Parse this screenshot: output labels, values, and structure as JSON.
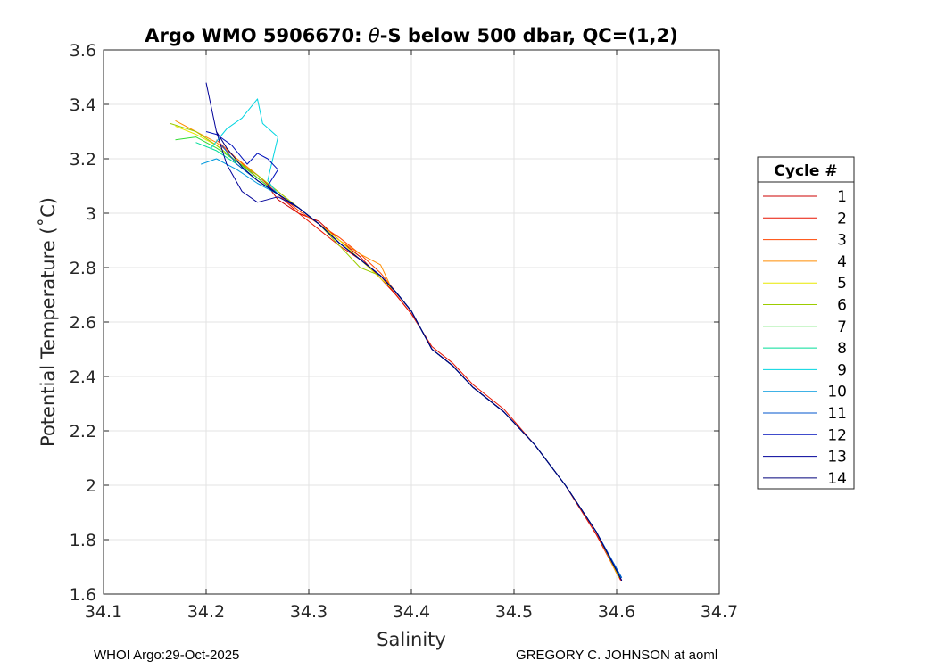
{
  "chart_data": {
    "type": "line",
    "title_prefix": "Argo WMO 5906670: ",
    "title_theta": "θ",
    "title_suffix": "-S below 500 dbar,  QC=(1,2)",
    "xlabel": "Salinity",
    "ylabel": "Potential Temperature (˚C)",
    "xlim": [
      34.1,
      34.7
    ],
    "ylim": [
      1.6,
      3.6
    ],
    "xticks": [
      34.1,
      34.2,
      34.3,
      34.4,
      34.5,
      34.6,
      34.7
    ],
    "xtick_labels": [
      "34.1",
      "34.2",
      "34.3",
      "34.4",
      "34.5",
      "34.6",
      "34.7"
    ],
    "yticks": [
      1.6,
      1.8,
      2.0,
      2.2,
      2.4,
      2.6,
      2.8,
      3.0,
      3.2,
      3.4,
      3.6
    ],
    "ytick_labels": [
      "1.6",
      "1.8",
      "2",
      "2.2",
      "2.4",
      "2.6",
      "2.8",
      "3",
      "3.2",
      "3.4",
      "3.6"
    ],
    "grid": true,
    "legend_title": "Cycle #",
    "legend_position": "right-outside",
    "series": [
      {
        "name": "1",
        "color": "#cc0000",
        "x": [
          34.605,
          34.58,
          34.55,
          34.52,
          34.49,
          34.46,
          34.44,
          34.42,
          34.41,
          34.4,
          34.385,
          34.37,
          34.35,
          34.33,
          34.31,
          34.29,
          34.27,
          34.26
        ],
        "y": [
          1.65,
          1.82,
          2.0,
          2.15,
          2.27,
          2.36,
          2.44,
          2.5,
          2.57,
          2.63,
          2.7,
          2.76,
          2.84,
          2.9,
          2.97,
          3.0,
          3.05,
          3.1
        ]
      },
      {
        "name": "2",
        "color": "#e81400",
        "x": [
          34.604,
          34.58,
          34.55,
          34.52,
          34.49,
          34.46,
          34.44,
          34.42,
          34.41,
          34.4,
          34.385,
          34.37,
          34.35,
          34.33,
          34.31,
          34.29,
          34.27,
          34.25,
          34.23
        ],
        "y": [
          1.65,
          1.82,
          2.0,
          2.15,
          2.28,
          2.37,
          2.45,
          2.51,
          2.57,
          2.63,
          2.7,
          2.77,
          2.83,
          2.88,
          2.94,
          3.0,
          3.07,
          3.14,
          3.2
        ]
      },
      {
        "name": "3",
        "color": "#ff4400",
        "x": [
          34.603,
          34.58,
          34.55,
          34.52,
          34.49,
          34.46,
          34.44,
          34.42,
          34.41,
          34.4,
          34.385,
          34.37,
          34.35,
          34.33,
          34.31,
          34.29,
          34.27,
          34.25,
          34.23,
          34.21
        ],
        "y": [
          1.66,
          1.83,
          2.0,
          2.15,
          2.27,
          2.36,
          2.44,
          2.5,
          2.57,
          2.64,
          2.71,
          2.78,
          2.85,
          2.91,
          2.96,
          3.01,
          3.07,
          3.13,
          3.2,
          3.27
        ]
      },
      {
        "name": "4",
        "color": "#ff8c00",
        "x": [
          34.602,
          34.58,
          34.55,
          34.52,
          34.49,
          34.46,
          34.44,
          34.42,
          34.41,
          34.4,
          34.38,
          34.37,
          34.35,
          34.33,
          34.31,
          34.29,
          34.27,
          34.25,
          34.23,
          34.21,
          34.19,
          34.17
        ],
        "y": [
          1.66,
          1.83,
          2.0,
          2.15,
          2.27,
          2.36,
          2.44,
          2.5,
          2.57,
          2.64,
          2.73,
          2.81,
          2.85,
          2.9,
          2.96,
          3.02,
          3.08,
          3.14,
          3.2,
          3.26,
          3.3,
          3.34
        ]
      },
      {
        "name": "5",
        "color": "#e8e800",
        "x": [
          34.603,
          34.58,
          34.55,
          34.52,
          34.49,
          34.46,
          34.44,
          34.42,
          34.41,
          34.4,
          34.385,
          34.37,
          34.35,
          34.33,
          34.31,
          34.29,
          34.27,
          34.25,
          34.23,
          34.21,
          34.19,
          34.17
        ],
        "y": [
          1.66,
          1.83,
          2.0,
          2.15,
          2.27,
          2.36,
          2.44,
          2.5,
          2.57,
          2.64,
          2.71,
          2.76,
          2.83,
          2.9,
          2.96,
          3.02,
          3.07,
          3.13,
          3.19,
          3.25,
          3.29,
          3.32
        ]
      },
      {
        "name": "6",
        "color": "#9ccc00",
        "x": [
          34.603,
          34.58,
          34.55,
          34.52,
          34.49,
          34.46,
          34.44,
          34.42,
          34.41,
          34.4,
          34.385,
          34.37,
          34.35,
          34.33,
          34.31,
          34.29,
          34.27,
          34.25,
          34.23,
          34.21,
          34.19,
          34.165
        ],
        "y": [
          1.66,
          1.83,
          2.0,
          2.15,
          2.27,
          2.36,
          2.44,
          2.5,
          2.57,
          2.64,
          2.71,
          2.77,
          2.8,
          2.88,
          2.96,
          3.02,
          3.08,
          3.14,
          3.19,
          3.25,
          3.3,
          3.33
        ]
      },
      {
        "name": "7",
        "color": "#33dd33",
        "x": [
          34.604,
          34.58,
          34.55,
          34.52,
          34.49,
          34.46,
          34.44,
          34.42,
          34.41,
          34.4,
          34.385,
          34.37,
          34.35,
          34.33,
          34.31,
          34.29,
          34.27,
          34.25,
          34.23,
          34.21,
          34.19,
          34.17
        ],
        "y": [
          1.66,
          1.83,
          2.0,
          2.15,
          2.27,
          2.36,
          2.44,
          2.5,
          2.57,
          2.64,
          2.71,
          2.77,
          2.83,
          2.89,
          2.96,
          3.02,
          3.07,
          3.13,
          3.19,
          3.24,
          3.28,
          3.27
        ]
      },
      {
        "name": "8",
        "color": "#00dd99",
        "x": [
          34.604,
          34.58,
          34.55,
          34.52,
          34.49,
          34.46,
          34.44,
          34.42,
          34.41,
          34.4,
          34.385,
          34.37,
          34.35,
          34.33,
          34.31,
          34.29,
          34.27,
          34.25,
          34.23,
          34.21,
          34.19
        ],
        "y": [
          1.66,
          1.83,
          2.0,
          2.15,
          2.27,
          2.36,
          2.44,
          2.5,
          2.57,
          2.64,
          2.71,
          2.77,
          2.83,
          2.89,
          2.96,
          3.02,
          3.07,
          3.12,
          3.18,
          3.23,
          3.26
        ]
      },
      {
        "name": "9",
        "color": "#00d4e0",
        "x": [
          34.604,
          34.58,
          34.55,
          34.52,
          34.49,
          34.46,
          34.44,
          34.42,
          34.41,
          34.4,
          34.385,
          34.37,
          34.35,
          34.33,
          34.31,
          34.29,
          34.27,
          34.26,
          34.265,
          34.27,
          34.255,
          34.25,
          34.235,
          34.22,
          34.205
        ],
        "y": [
          1.66,
          1.83,
          2.0,
          2.15,
          2.27,
          2.36,
          2.44,
          2.5,
          2.57,
          2.64,
          2.71,
          2.77,
          2.83,
          2.89,
          2.96,
          3.02,
          3.07,
          3.12,
          3.2,
          3.28,
          3.33,
          3.42,
          3.35,
          3.31,
          3.24
        ]
      },
      {
        "name": "10",
        "color": "#0099dd",
        "x": [
          34.605,
          34.58,
          34.55,
          34.52,
          34.49,
          34.46,
          34.44,
          34.42,
          34.41,
          34.4,
          34.385,
          34.37,
          34.35,
          34.33,
          34.31,
          34.29,
          34.27,
          34.25,
          34.23,
          34.21,
          34.195
        ],
        "y": [
          1.66,
          1.83,
          2.0,
          2.15,
          2.27,
          2.36,
          2.44,
          2.5,
          2.57,
          2.64,
          2.71,
          2.77,
          2.83,
          2.89,
          2.96,
          3.02,
          3.07,
          3.11,
          3.16,
          3.2,
          3.18
        ]
      },
      {
        "name": "11",
        "color": "#0055cc",
        "x": [
          34.605,
          34.58,
          34.55,
          34.52,
          34.49,
          34.46,
          34.44,
          34.42,
          34.41,
          34.4,
          34.385,
          34.37,
          34.35,
          34.33,
          34.31,
          34.29,
          34.27,
          34.25,
          34.23,
          34.215
        ],
        "y": [
          1.66,
          1.83,
          2.0,
          2.15,
          2.27,
          2.36,
          2.44,
          2.5,
          2.57,
          2.64,
          2.71,
          2.77,
          2.83,
          2.89,
          2.96,
          3.02,
          3.07,
          3.12,
          3.18,
          3.25
        ]
      },
      {
        "name": "12",
        "color": "#0011bb",
        "x": [
          34.605,
          34.58,
          34.55,
          34.52,
          34.49,
          34.46,
          34.44,
          34.42,
          34.41,
          34.4,
          34.385,
          34.37,
          34.35,
          34.33,
          34.31,
          34.29,
          34.27,
          34.26,
          34.27,
          34.26,
          34.25,
          34.24,
          34.225,
          34.21,
          34.2
        ],
        "y": [
          1.65,
          1.83,
          2.0,
          2.15,
          2.27,
          2.36,
          2.44,
          2.5,
          2.57,
          2.64,
          2.71,
          2.77,
          2.83,
          2.89,
          2.96,
          3.02,
          3.07,
          3.1,
          3.16,
          3.2,
          3.22,
          3.18,
          3.25,
          3.29,
          3.3
        ]
      },
      {
        "name": "13",
        "color": "#000099",
        "x": [
          34.605,
          34.58,
          34.55,
          34.52,
          34.49,
          34.46,
          34.44,
          34.42,
          34.41,
          34.4,
          34.385,
          34.37,
          34.35,
          34.33,
          34.31,
          34.29,
          34.27,
          34.25,
          34.235,
          34.22,
          34.21,
          34.2
        ],
        "y": [
          1.65,
          1.83,
          2.0,
          2.15,
          2.27,
          2.36,
          2.44,
          2.5,
          2.57,
          2.64,
          2.71,
          2.77,
          2.83,
          2.89,
          2.96,
          3.02,
          3.06,
          3.04,
          3.08,
          3.18,
          3.3,
          3.48
        ]
      },
      {
        "name": "14",
        "color": "#00007a",
        "x": [
          34.605,
          34.58,
          34.55,
          34.52,
          34.49,
          34.46,
          34.44,
          34.42,
          34.41,
          34.4,
          34.385,
          34.37,
          34.35,
          34.33,
          34.31,
          34.29,
          34.27,
          34.25,
          34.235,
          34.22,
          34.21
        ],
        "y": [
          1.65,
          1.83,
          2.0,
          2.15,
          2.27,
          2.36,
          2.44,
          2.5,
          2.57,
          2.64,
          2.71,
          2.77,
          2.83,
          2.89,
          2.96,
          3.02,
          3.07,
          3.12,
          3.17,
          3.24,
          3.3
        ]
      }
    ]
  },
  "footer": {
    "left": "WHOI Argo:29-Oct-2025",
    "right": "GREGORY C. JOHNSON at aoml"
  }
}
